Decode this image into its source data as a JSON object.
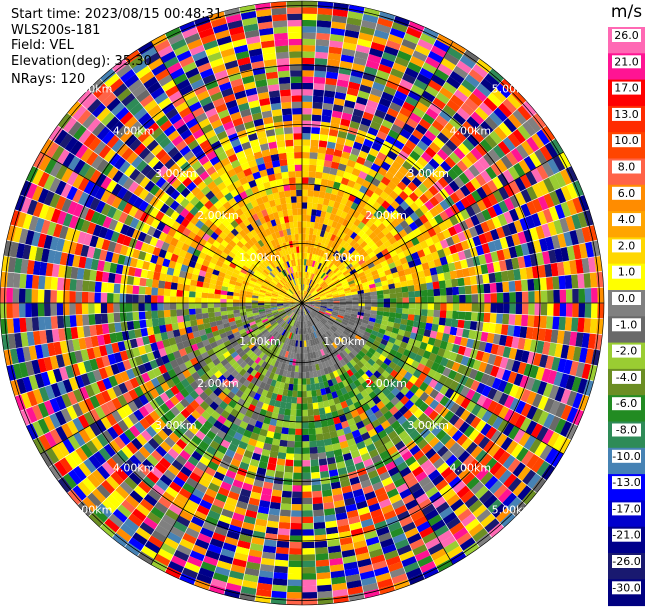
{
  "header": {
    "start_time": "Start time: 2023/08/15 00:48:31",
    "instrument": "WLS200s-181",
    "field": "Field: VEL",
    "elevation": "Elevation(deg): 35.30",
    "nrays": "NRays: 120"
  },
  "colorbar": {
    "unit": "m/s",
    "ticks": [
      "26.0",
      "21.0",
      "17.0",
      "13.0",
      "10.0",
      "8.0",
      "6.0",
      "4.0",
      "2.0",
      "1.0",
      "0.0",
      "-1.0",
      "-2.0",
      "-4.0",
      "-6.0",
      "-8.0",
      "-10.0",
      "-13.0",
      "-17.0",
      "-21.0",
      "-26.0",
      "-30.0"
    ],
    "colors": [
      "#ff69b4",
      "#ff1493",
      "#ff0000",
      "#ff2b00",
      "#ff4500",
      "#ff6347",
      "#ff8c00",
      "#ffa500",
      "#ffd700",
      "#ffff00",
      "#808080",
      "#696969",
      "#9acd32",
      "#6b8e23",
      "#228b22",
      "#2e8b57",
      "#4682b4",
      "#0000ff",
      "#0000cd",
      "#00008b",
      "#191970",
      "#000080"
    ]
  },
  "range_labels": [
    "1.00km",
    "2.00km",
    "3.00km",
    "4.00km",
    "5.00km"
  ],
  "chart_data": {
    "type": "heatmap",
    "title": "",
    "field": "VEL",
    "units": "m/s",
    "nrays": 120,
    "elevation_deg": 35.3,
    "range_rings_km": [
      1,
      2,
      3,
      4,
      5
    ],
    "color_levels": [
      -30,
      -26,
      -21,
      -17,
      -13,
      -10,
      -8,
      -6,
      -4,
      -2,
      -1,
      0,
      1,
      2,
      4,
      6,
      8,
      10,
      13,
      17,
      21,
      26
    ],
    "pattern": "near-range positive velocities (yellow/orange) toward north and west, negative (green) toward south-east; beyond ~2.5 km noisy random values"
  }
}
